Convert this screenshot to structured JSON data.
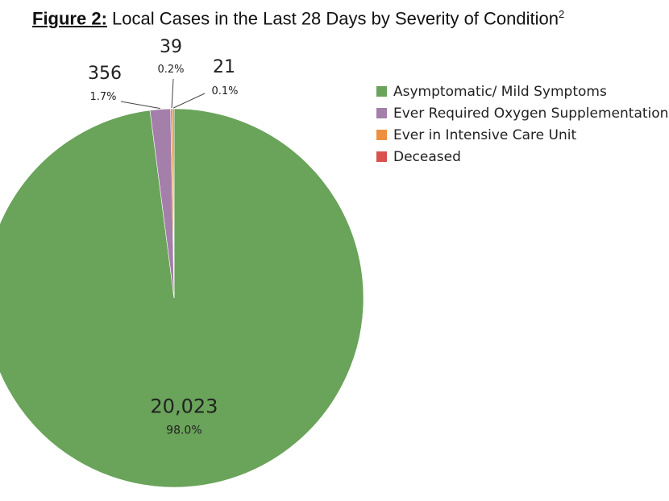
{
  "title": {
    "prefix": "Figure 2:",
    "text": " Local Cases in the Last 28 Days by Severity of Condition",
    "superscript": "2"
  },
  "chart_data": {
    "type": "pie",
    "title": "Figure 2: Local Cases in the Last 28 Days by Severity of Condition",
    "categories": [
      "Asymptomatic/ Mild Symptoms",
      "Ever Required Oxygen Supplementation",
      "Ever in Intensive Care Unit",
      "Deceased"
    ],
    "values": [
      20023,
      356,
      39,
      21
    ],
    "percent_labels": [
      "98.0%",
      "1.7%",
      "0.2%",
      "0.1%"
    ],
    "value_labels": [
      "20,023",
      "356",
      "39",
      "21"
    ],
    "colors": [
      "#6aa35a",
      "#a47fa9",
      "#ec9140",
      "#d9504f"
    ],
    "legend_position": "right"
  }
}
